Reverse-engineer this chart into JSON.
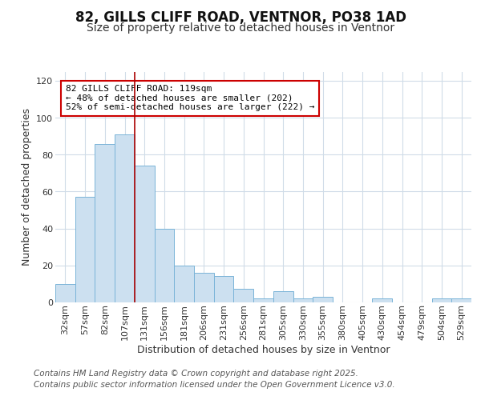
{
  "title": "82, GILLS CLIFF ROAD, VENTNOR, PO38 1AD",
  "subtitle": "Size of property relative to detached houses in Ventnor",
  "xlabel": "Distribution of detached houses by size in Ventnor",
  "ylabel": "Number of detached properties",
  "categories": [
    "32sqm",
    "57sqm",
    "82sqm",
    "107sqm",
    "131sqm",
    "156sqm",
    "181sqm",
    "206sqm",
    "231sqm",
    "256sqm",
    "281sqm",
    "305sqm",
    "330sqm",
    "355sqm",
    "380sqm",
    "405sqm",
    "430sqm",
    "454sqm",
    "479sqm",
    "504sqm",
    "529sqm"
  ],
  "values": [
    10,
    57,
    86,
    91,
    74,
    40,
    20,
    16,
    14,
    7,
    2,
    6,
    2,
    3,
    0,
    0,
    2,
    0,
    0,
    2,
    2
  ],
  "bar_color": "#cce0f0",
  "bar_edge_color": "#7ab4d8",
  "bar_width": 1.0,
  "vline_x": 3.5,
  "vline_color": "#aa0000",
  "annotation_box_text": "82 GILLS CLIFF ROAD: 119sqm\n← 48% of detached houses are smaller (202)\n52% of semi-detached houses are larger (222) →",
  "ylim": [
    0,
    125
  ],
  "yticks": [
    0,
    20,
    40,
    60,
    80,
    100,
    120
  ],
  "footer_line1": "Contains HM Land Registry data © Crown copyright and database right 2025.",
  "footer_line2": "Contains public sector information licensed under the Open Government Licence v3.0.",
  "background_color": "#ffffff",
  "plot_background": "#ffffff",
  "grid_color": "#d0dce8",
  "title_fontsize": 12,
  "subtitle_fontsize": 10,
  "axis_label_fontsize": 9,
  "tick_fontsize": 8,
  "footer_fontsize": 7.5
}
